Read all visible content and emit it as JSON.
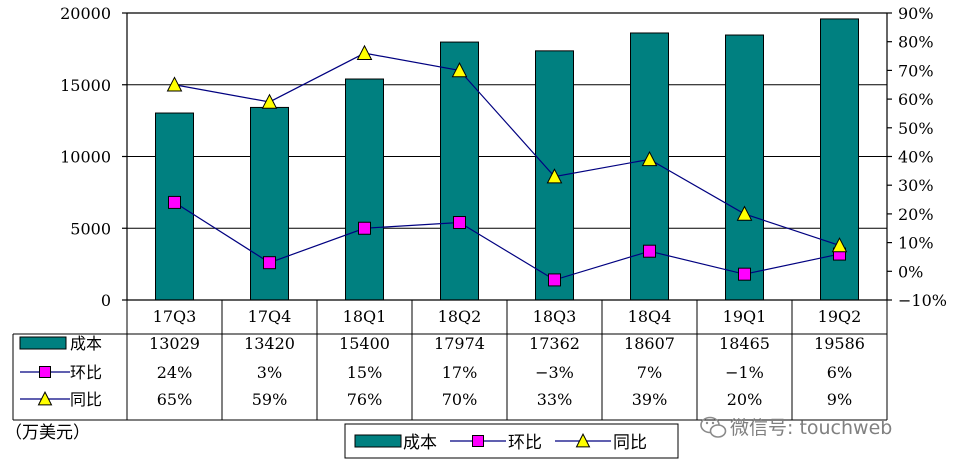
{
  "chart_data": {
    "type": "bar",
    "categories": [
      "17Q3",
      "17Q4",
      "18Q1",
      "18Q2",
      "18Q3",
      "18Q4",
      "19Q1",
      "19Q2"
    ],
    "series": [
      {
        "name": "成本",
        "type": "bar",
        "axis": "left",
        "color": "#008080",
        "values": [
          13029,
          13420,
          15400,
          17974,
          17362,
          18607,
          18465,
          19586
        ],
        "table_labels": [
          "13029",
          "13420",
          "15400",
          "17974",
          "17362",
          "18607",
          "18465",
          "19586"
        ]
      },
      {
        "name": "环比",
        "type": "line",
        "axis": "right",
        "color": "#000080",
        "marker": "square",
        "marker_color": "#ff00ff",
        "values": [
          24,
          3,
          15,
          17,
          -3,
          7,
          -1,
          6
        ],
        "table_labels": [
          "24%",
          "3%",
          "15%",
          "17%",
          "−3%",
          "7%",
          "−1%",
          "6%"
        ]
      },
      {
        "name": "同比",
        "type": "line",
        "axis": "right",
        "color": "#000080",
        "marker": "triangle",
        "marker_color": "#ffff00",
        "values": [
          65,
          59,
          76,
          70,
          33,
          39,
          20,
          9
        ],
        "table_labels": [
          "65%",
          "59%",
          "76%",
          "70%",
          "33%",
          "39%",
          "20%",
          "9%"
        ]
      }
    ],
    "y_left": {
      "lim": [
        0,
        20000
      ],
      "ticks": [
        "0",
        "5000",
        "10000",
        "15000",
        "20000"
      ]
    },
    "y_right": {
      "lim": [
        -10,
        90
      ],
      "ticks": [
        "−10%",
        "0%",
        "10%",
        "20%",
        "30%",
        "40%",
        "50%",
        "60%",
        "70%",
        "80%",
        "90%"
      ]
    },
    "unit_label": "（万美元）",
    "grid": true,
    "legend_position": "bottom",
    "data_table": true
  },
  "watermark": {
    "icon": "wechat-icon",
    "text": "微信号: touchweb"
  }
}
